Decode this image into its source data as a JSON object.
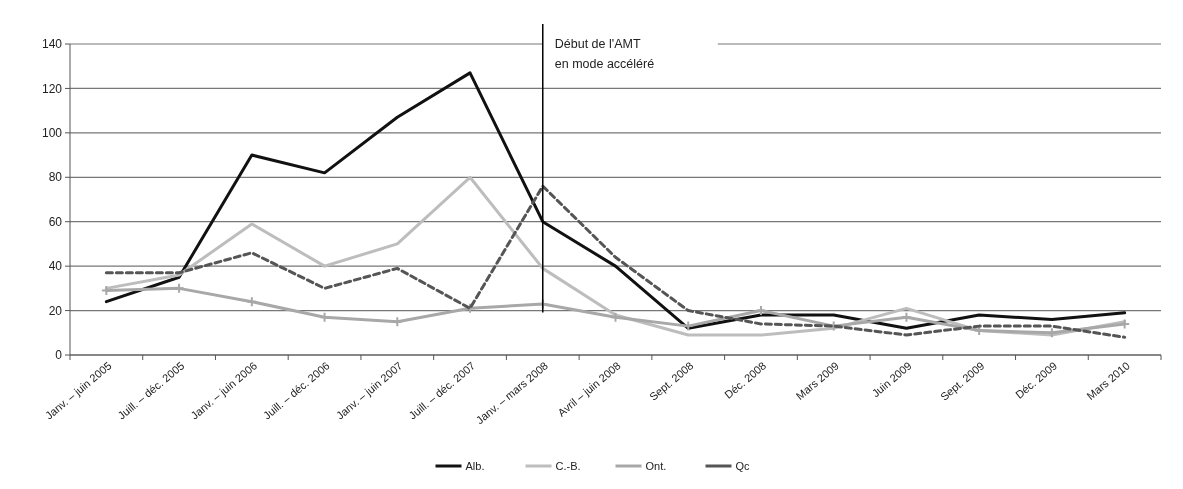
{
  "chart_data": {
    "type": "line",
    "categories": [
      "Janv. – juin 2005",
      "Juill. – déc. 2005",
      "Janv. – juin 2006",
      "Juill. – déc. 2006",
      "Janv. – juin 2007",
      "Juill. – déc. 2007",
      "Janv. – mars 2008",
      "Avril – juin 2008",
      "Sept. 2008",
      "Déc. 2008",
      "Mars 2009",
      "Juin 2009",
      "Sept. 2009",
      "Déc. 2009",
      "Mars 2010"
    ],
    "series": [
      {
        "name": "Alb.",
        "color": "#111111",
        "values": [
          24,
          35,
          90,
          82,
          107,
          127,
          60,
          40,
          12,
          18,
          18,
          12,
          18,
          16,
          19
        ]
      },
      {
        "name": "C.-B.",
        "color": "#bdbdbd",
        "values": [
          30,
          36,
          59,
          40,
          50,
          80,
          39,
          18,
          9,
          9,
          12,
          21,
          11,
          9,
          15
        ]
      },
      {
        "name": "Ont.",
        "color": "#a8a8a8",
        "marker": "cross",
        "values": [
          29,
          30,
          24,
          17,
          15,
          21,
          23,
          17,
          13,
          20,
          13,
          17,
          11,
          10,
          14
        ]
      },
      {
        "name": "Qc",
        "color": "#555555",
        "line_style": "dashed",
        "values": [
          37,
          37,
          46,
          30,
          39,
          21,
          76,
          44,
          20,
          14,
          13,
          9,
          13,
          13,
          8
        ]
      }
    ],
    "ylim": [
      0,
      140
    ],
    "yticks": [
      0,
      20,
      40,
      60,
      80,
      100,
      120,
      140
    ],
    "grid": "y",
    "legend": "bottom",
    "marker": "none",
    "line_style": "solid",
    "ref_lines": [
      {
        "axis": "x",
        "value": "Janv. – mars 2008",
        "label": "Début de l'AMT\nen mode accéléré",
        "color": "#000000"
      }
    ]
  }
}
